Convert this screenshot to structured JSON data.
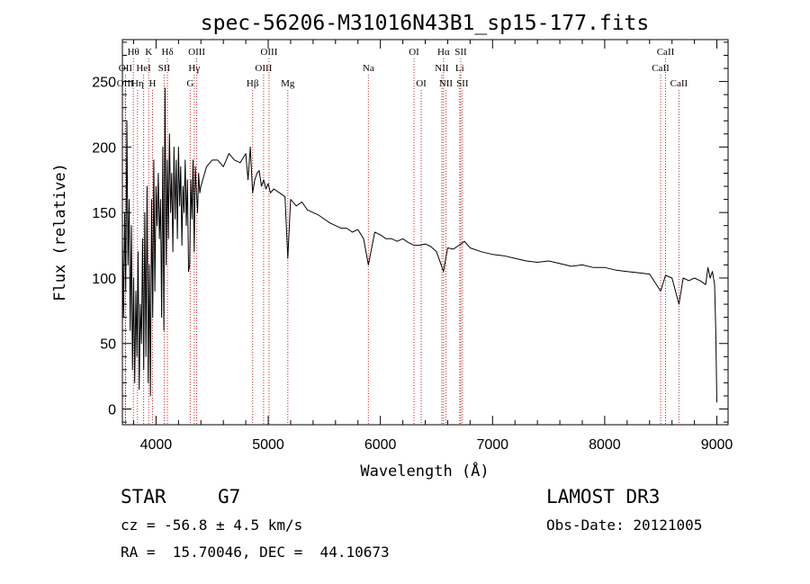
{
  "chart_data": {
    "type": "line",
    "title": "spec-56206-M31016N43B1_sp15-177.fits",
    "xlabel": "Wavelength (Å)",
    "ylabel": "Flux (relative)",
    "xlim": [
      3700,
      9100
    ],
    "ylim": [
      -12,
      282
    ],
    "xticks": [
      4000,
      5000,
      6000,
      7000,
      8000,
      9000
    ],
    "xtick_labels": [
      "4000",
      "5000",
      "6000",
      "7000",
      "8000",
      "9000"
    ],
    "yticks": [
      0,
      50,
      100,
      150,
      200,
      250
    ],
    "ytick_labels": [
      "0",
      "50",
      "100",
      "150",
      "200",
      "250"
    ],
    "series": [
      {
        "name": "spectrum",
        "color": "#000000",
        "x": [
          3700,
          3710,
          3720,
          3730,
          3740,
          3750,
          3760,
          3770,
          3780,
          3790,
          3800,
          3810,
          3820,
          3830,
          3840,
          3850,
          3860,
          3870,
          3880,
          3890,
          3900,
          3910,
          3920,
          3930,
          3940,
          3950,
          3960,
          3970,
          3980,
          3990,
          4000,
          4010,
          4020,
          4030,
          4040,
          4050,
          4060,
          4070,
          4080,
          4090,
          4100,
          4110,
          4120,
          4130,
          4140,
          4150,
          4160,
          4170,
          4180,
          4190,
          4200,
          4210,
          4220,
          4230,
          4240,
          4250,
          4260,
          4270,
          4280,
          4290,
          4300,
          4310,
          4320,
          4330,
          4340,
          4350,
          4360,
          4370,
          4380,
          4390,
          4400,
          4450,
          4500,
          4550,
          4600,
          4650,
          4700,
          4750,
          4800,
          4820,
          4840,
          4861,
          4880,
          4900,
          4920,
          4940,
          4960,
          4980,
          5000,
          5020,
          5050,
          5100,
          5150,
          5175,
          5200,
          5250,
          5300,
          5350,
          5400,
          5450,
          5500,
          5550,
          5600,
          5650,
          5700,
          5750,
          5800,
          5850,
          5893,
          5950,
          6000,
          6050,
          6100,
          6150,
          6200,
          6250,
          6300,
          6350,
          6400,
          6450,
          6500,
          6563,
          6600,
          6650,
          6700,
          6750,
          6800,
          6900,
          7000,
          7100,
          7200,
          7300,
          7400,
          7500,
          7600,
          7700,
          7800,
          7900,
          8000,
          8100,
          8200,
          8300,
          8400,
          8498,
          8542,
          8600,
          8662,
          8700,
          8750,
          8800,
          8850,
          8900,
          8920,
          8940,
          8960,
          8980,
          8990,
          9000
        ],
        "values": [
          130,
          70,
          150,
          90,
          220,
          110,
          160,
          60,
          140,
          30,
          100,
          20,
          90,
          40,
          120,
          15,
          80,
          50,
          130,
          30,
          150,
          40,
          170,
          20,
          110,
          10,
          160,
          70,
          190,
          90,
          170,
          140,
          180,
          130,
          160,
          70,
          200,
          60,
          245,
          110,
          190,
          130,
          210,
          150,
          180,
          120,
          200,
          145,
          190,
          130,
          200,
          155,
          185,
          125,
          170,
          150,
          190,
          140,
          175,
          105,
          110,
          175,
          145,
          190,
          120,
          185,
          165,
          150,
          180,
          165,
          170,
          185,
          190,
          190,
          185,
          195,
          190,
          188,
          195,
          175,
          200,
          165,
          175,
          180,
          182,
          170,
          175,
          168,
          172,
          165,
          168,
          165,
          162,
          115,
          160,
          155,
          158,
          152,
          150,
          148,
          145,
          142,
          140,
          138,
          138,
          135,
          137,
          130,
          110,
          135,
          133,
          130,
          130,
          128,
          130,
          127,
          125,
          125,
          126,
          124,
          120,
          105,
          123,
          122,
          125,
          128,
          123,
          120,
          118,
          117,
          115,
          113,
          112,
          113,
          111,
          109,
          110,
          108,
          108,
          106,
          105,
          104,
          103,
          90,
          102,
          100,
          80,
          100,
          98,
          100,
          98,
          95,
          108,
          100,
          105,
          95,
          60,
          5
        ]
      }
    ],
    "lines": [
      {
        "label": "Hθ",
        "x": 3798,
        "row": 0
      },
      {
        "label": "OII",
        "x": 3727,
        "row": 1
      },
      {
        "label": "OIII",
        "x": 3726,
        "row": 2
      },
      {
        "label": "Hη",
        "x": 3835,
        "row": 2
      },
      {
        "label": "HeI",
        "x": 3889,
        "row": 1
      },
      {
        "label": "K",
        "x": 3934,
        "row": 0
      },
      {
        "label": "H",
        "x": 3969,
        "row": 2
      },
      {
        "label": "SII",
        "x": 4072,
        "row": 1
      },
      {
        "label": "Hδ",
        "x": 4102,
        "row": 0
      },
      {
        "label": "OIII",
        "x": 4363,
        "row": 0
      },
      {
        "label": "Hγ",
        "x": 4340,
        "row": 1
      },
      {
        "label": "G",
        "x": 4305,
        "row": 2
      },
      {
        "label": "Hβ",
        "x": 4861,
        "row": 2
      },
      {
        "label": "OIII",
        "x": 5007,
        "row": 0
      },
      {
        "label": "OIII",
        "x": 4959,
        "row": 1
      },
      {
        "label": "Mg",
        "x": 5175,
        "row": 2
      },
      {
        "label": "Na",
        "x": 5893,
        "row": 1
      },
      {
        "label": "OI",
        "x": 6300,
        "row": 0
      },
      {
        "label": "OI",
        "x": 6364,
        "row": 2
      },
      {
        "label": "Hα",
        "x": 6563,
        "row": 0
      },
      {
        "label": "NII",
        "x": 6548,
        "row": 1
      },
      {
        "label": "NII",
        "x": 6584,
        "row": 2
      },
      {
        "label": "SII",
        "x": 6717,
        "row": 0
      },
      {
        "label": "Li",
        "x": 6707,
        "row": 1
      },
      {
        "label": "SII",
        "x": 6731,
        "row": 2
      },
      {
        "label": "CaII",
        "x": 8542,
        "row": 0
      },
      {
        "label": "CaII",
        "x": 8498,
        "row": 1
      },
      {
        "label": "CaII",
        "x": 8662,
        "row": 2
      }
    ]
  },
  "info": {
    "class": "STAR",
    "subclass": "G7",
    "survey": "LAMOST DR3",
    "velocity": "cz = -56.8 ± 4.5 km/s",
    "obs_date": "Obs-Date: 20121005",
    "coords": "RA =  15.70046, DEC =  44.10673"
  },
  "colors": {
    "line_marker": "#cc2222",
    "axes": "#000000",
    "background": "#ffffff"
  }
}
